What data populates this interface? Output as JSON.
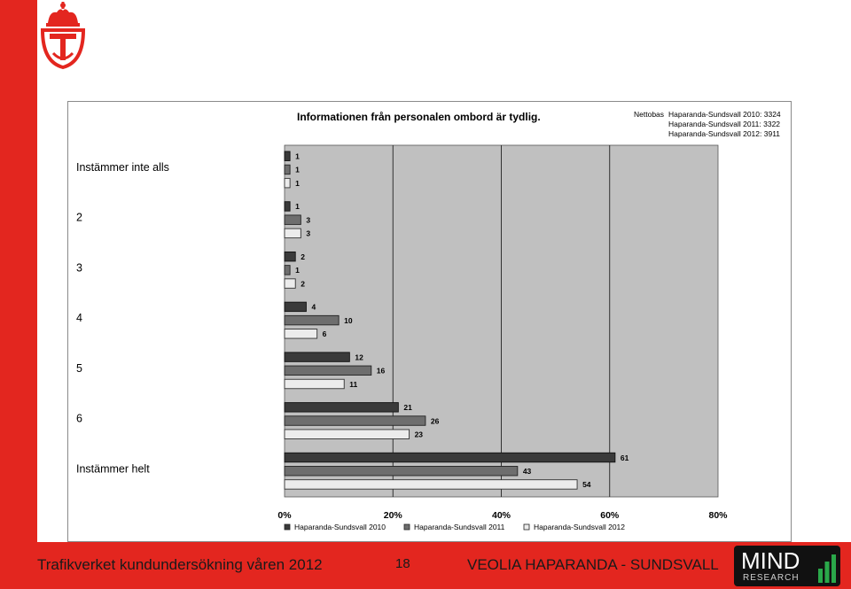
{
  "footer": {
    "left_text": "Trafikverket kundundersökning våren 2012",
    "page_number": "18",
    "right_text": "VEOLIA HAPARANDA - SUNDSVALL",
    "logo_word": "MIND",
    "logo_sub": "RESEARCH"
  },
  "colors": {
    "accent": "#e3261f",
    "plot_bg": "#c0c0c0",
    "series_2010": "#3a3a3a",
    "series_2011": "#6e6e6e",
    "series_2012": "#ececec"
  },
  "icons": {
    "brand_logo": "crown-shield-logo-icon",
    "mind_logo": "bar-chart-logo-icon"
  },
  "chart_data": {
    "type": "bar",
    "orientation": "horizontal",
    "title": "Informationen från personalen ombord är tydlig.",
    "nettobas_label": "Nettobas",
    "nettobas": [
      "Haparanda-Sundsvall 2010: 3324",
      "Haparanda-Sundsvall 2011: 3322",
      "Haparanda-Sundsvall 2012: 3911"
    ],
    "categories": [
      "Instämmer inte alls",
      "2",
      "3",
      "4",
      "5",
      "6",
      "Instämmer helt"
    ],
    "series": [
      {
        "name": "Haparanda-Sundsvall 2010",
        "values": [
          1,
          1,
          2,
          4,
          12,
          21,
          61
        ]
      },
      {
        "name": "Haparanda-Sundsvall 2011",
        "values": [
          1,
          3,
          1,
          10,
          16,
          26,
          43
        ]
      },
      {
        "name": "Haparanda-Sundsvall 2012",
        "values": [
          1,
          3,
          2,
          6,
          11,
          23,
          54
        ]
      }
    ],
    "xlim": [
      0,
      80
    ],
    "xticks": [
      "0%",
      "20%",
      "40%",
      "60%",
      "80%"
    ],
    "grid": true,
    "legend_position": "bottom"
  }
}
